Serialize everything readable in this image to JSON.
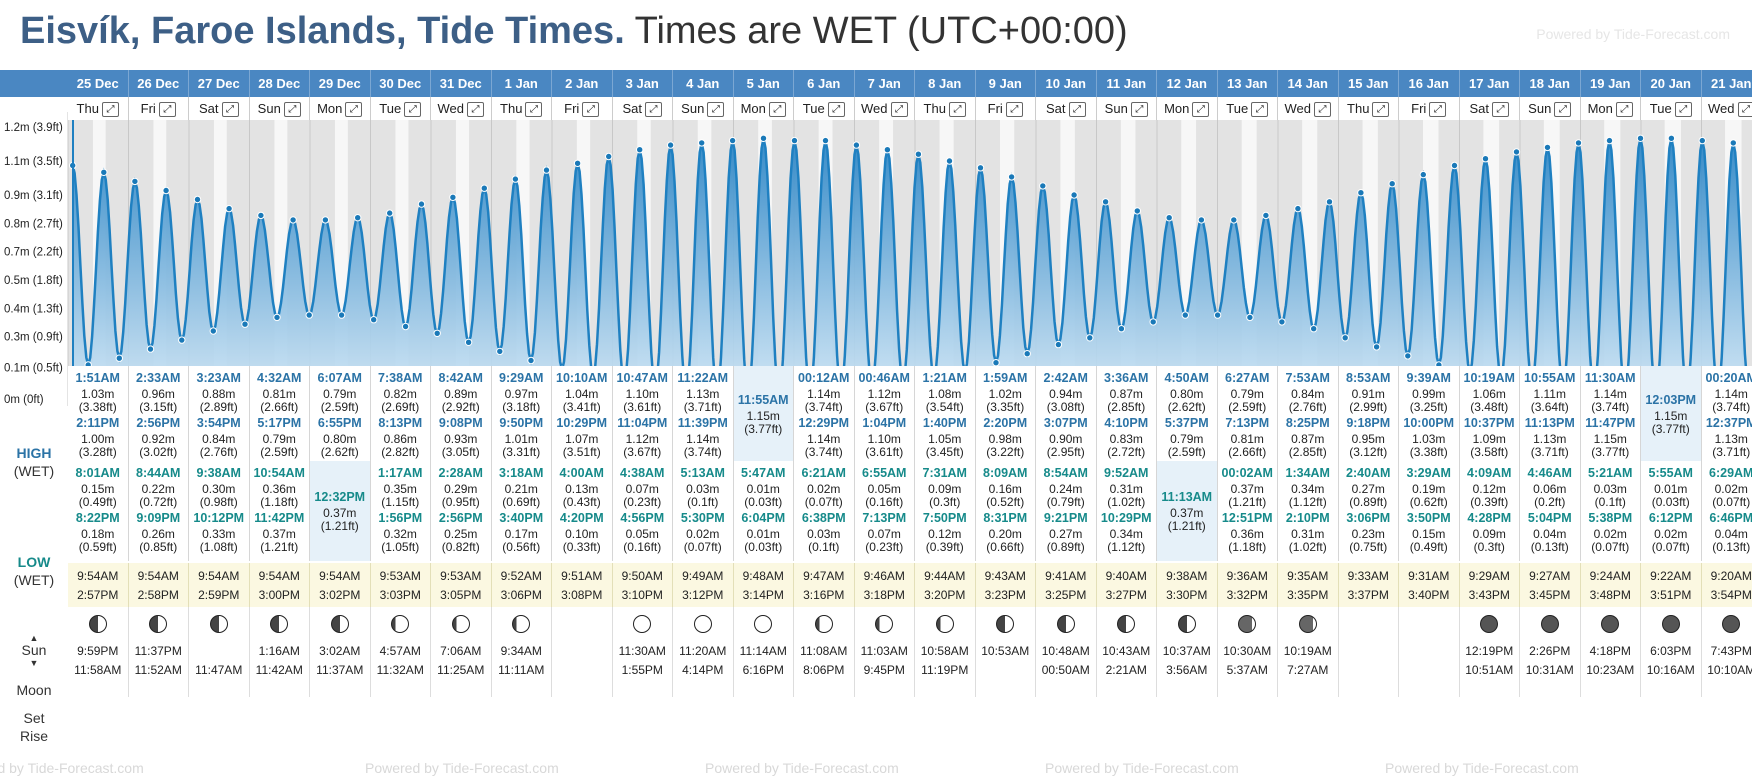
{
  "header": {
    "location": "Eisvík, Faroe Islands, Tide Times.",
    "timezone": "Times are WET (UTC+00:00)",
    "powered": "Powered by Tide-Forecast.com"
  },
  "footer": {
    "powered": "Powered by Tide-Forecast.com"
  },
  "labels": {
    "high": "HIGH",
    "low": "LOW",
    "wet": "(WET)",
    "sun": "Sun",
    "moon": "Moon",
    "set": "Set",
    "rise": "Rise"
  },
  "y_axis": [
    "1.2m (3.9ft)",
    "1.1m (3.5ft)",
    "0.9m (3.1ft)",
    "0.8m (2.7ft)",
    "0.7m (2.2ft)",
    "0.5m (1.8ft)",
    "0.4m (1.3ft)",
    "0.3m (0.9ft)",
    "0.1m (0.5ft)",
    "0m (0ft)"
  ],
  "icons": {
    "expand": "expand-icon",
    "sun_up": "arrow-up-icon",
    "sun_down": "arrow-down-icon",
    "moon": "moon-phase-icon"
  },
  "colors": {
    "header_bar": "#4a87c2",
    "tide": "#1f80c1",
    "title": "#3d5f86",
    "high_time": "#2b73a6",
    "low_time": "#168a8a",
    "sun_bg": "#fbf8e1"
  },
  "days": [
    {
      "date": "25 Dec",
      "dow": "Thu",
      "high": [
        [
          "1:51AM",
          "1.03m",
          "(3.38ft)"
        ],
        [
          "2:11PM",
          "1.00m",
          "(3.28ft)"
        ]
      ],
      "low": [
        [
          "8:01AM",
          "0.15m",
          "(0.49ft)"
        ],
        [
          "8:22PM",
          "0.18m",
          "(0.59ft)"
        ]
      ],
      "sunrise": "9:54AM",
      "sunset": "2:57PM",
      "moon_a": "9:59PM",
      "moon_b": "11:58AM",
      "moon_icon": "half"
    },
    {
      "date": "26 Dec",
      "dow": "Fri",
      "high": [
        [
          "2:33AM",
          "0.96m",
          "(3.15ft)"
        ],
        [
          "2:56PM",
          "0.92m",
          "(3.02ft)"
        ]
      ],
      "low": [
        [
          "8:44AM",
          "0.22m",
          "(0.72ft)"
        ],
        [
          "9:09PM",
          "0.26m",
          "(0.85ft)"
        ]
      ],
      "sunrise": "9:54AM",
      "sunset": "2:58PM",
      "moon_a": "11:37PM",
      "moon_b": "11:52AM",
      "moon_icon": "half"
    },
    {
      "date": "27 Dec",
      "dow": "Sat",
      "high": [
        [
          "3:23AM",
          "0.88m",
          "(2.89ft)"
        ],
        [
          "3:54PM",
          "0.84m",
          "(2.76ft)"
        ]
      ],
      "low": [
        [
          "9:38AM",
          "0.30m",
          "(0.98ft)"
        ],
        [
          "10:12PM",
          "0.33m",
          "(1.08ft)"
        ]
      ],
      "sunrise": "9:54AM",
      "sunset": "2:59PM",
      "moon_a": "",
      "moon_b": "11:47AM",
      "moon_icon": "half"
    },
    {
      "date": "28 Dec",
      "dow": "Sun",
      "high": [
        [
          "4:32AM",
          "0.81m",
          "(2.66ft)"
        ],
        [
          "5:17PM",
          "0.79m",
          "(2.59ft)"
        ]
      ],
      "low": [
        [
          "10:54AM",
          "0.36m",
          "(1.18ft)"
        ],
        [
          "11:42PM",
          "0.37m",
          "(1.21ft)"
        ]
      ],
      "sunrise": "9:54AM",
      "sunset": "3:00PM",
      "moon_a": "1:16AM",
      "moon_b": "11:42AM",
      "moon_icon": "half"
    },
    {
      "date": "29 Dec",
      "dow": "Mon",
      "high": [
        [
          "6:07AM",
          "0.79m",
          "(2.59ft)"
        ],
        [
          "6:55PM",
          "0.80m",
          "(2.62ft)"
        ]
      ],
      "low": [
        [
          "12:32PM",
          "0.37m",
          "(1.21ft)"
        ]
      ],
      "sunrise": "9:54AM",
      "sunset": "3:02PM",
      "moon_a": "3:02AM",
      "moon_b": "11:37AM",
      "moon_icon": "half"
    },
    {
      "date": "30 Dec",
      "dow": "Tue",
      "high": [
        [
          "7:38AM",
          "0.82m",
          "(2.69ft)"
        ],
        [
          "8:13PM",
          "0.86m",
          "(2.82ft)"
        ]
      ],
      "low": [
        [
          "1:17AM",
          "0.35m",
          "(1.15ft)"
        ],
        [
          "1:56PM",
          "0.32m",
          "(1.05ft)"
        ]
      ],
      "sunrise": "9:53AM",
      "sunset": "3:03PM",
      "moon_a": "4:57AM",
      "moon_b": "11:32AM",
      "moon_icon": "gibbous"
    },
    {
      "date": "31 Dec",
      "dow": "Wed",
      "high": [
        [
          "8:42AM",
          "0.89m",
          "(2.92ft)"
        ],
        [
          "9:08PM",
          "0.93m",
          "(3.05ft)"
        ]
      ],
      "low": [
        [
          "2:28AM",
          "0.29m",
          "(0.95ft)"
        ],
        [
          "2:56PM",
          "0.25m",
          "(0.82ft)"
        ]
      ],
      "sunrise": "9:53AM",
      "sunset": "3:05PM",
      "moon_a": "7:06AM",
      "moon_b": "11:25AM",
      "moon_icon": "gibbous"
    },
    {
      "date": "1 Jan",
      "dow": "Thu",
      "high": [
        [
          "9:29AM",
          "0.97m",
          "(3.18ft)"
        ],
        [
          "9:50PM",
          "1.01m",
          "(3.31ft)"
        ]
      ],
      "low": [
        [
          "3:18AM",
          "0.21m",
          "(0.69ft)"
        ],
        [
          "3:40PM",
          "0.17m",
          "(0.56ft)"
        ]
      ],
      "sunrise": "9:52AM",
      "sunset": "3:06PM",
      "moon_a": "9:34AM",
      "moon_b": "11:11AM",
      "moon_icon": "gibbous"
    },
    {
      "date": "2 Jan",
      "dow": "Fri",
      "high": [
        [
          "10:10AM",
          "1.04m",
          "(3.41ft)"
        ],
        [
          "10:29PM",
          "1.07m",
          "(3.51ft)"
        ]
      ],
      "low": [
        [
          "4:00AM",
          "0.13m",
          "(0.43ft)"
        ],
        [
          "4:20PM",
          "0.10m",
          "(0.33ft)"
        ]
      ],
      "sunrise": "9:51AM",
      "sunset": "3:08PM",
      "moon_a": "",
      "moon_b": "",
      "moon_icon": "none"
    },
    {
      "date": "3 Jan",
      "dow": "Sat",
      "high": [
        [
          "10:47AM",
          "1.10m",
          "(3.61ft)"
        ],
        [
          "11:04PM",
          "1.12m",
          "(3.67ft)"
        ]
      ],
      "low": [
        [
          "4:38AM",
          "0.07m",
          "(0.23ft)"
        ],
        [
          "4:56PM",
          "0.05m",
          "(0.16ft)"
        ]
      ],
      "sunrise": "9:50AM",
      "sunset": "3:10PM",
      "moon_a": "11:30AM",
      "moon_b": "1:55PM",
      "moon_icon": "full"
    },
    {
      "date": "4 Jan",
      "dow": "Sun",
      "high": [
        [
          "11:22AM",
          "1.13m",
          "(3.71ft)"
        ],
        [
          "11:39PM",
          "1.14m",
          "(3.74ft)"
        ]
      ],
      "low": [
        [
          "5:13AM",
          "0.03m",
          "(0.1ft)"
        ],
        [
          "5:30PM",
          "0.02m",
          "(0.07ft)"
        ]
      ],
      "sunrise": "9:49AM",
      "sunset": "3:12PM",
      "moon_a": "11:20AM",
      "moon_b": "4:14PM",
      "moon_icon": "full"
    },
    {
      "date": "5 Jan",
      "dow": "Mon",
      "high": [
        [
          "11:55AM",
          "1.15m",
          "(3.77ft)"
        ]
      ],
      "low": [
        [
          "5:47AM",
          "0.01m",
          "(0.03ft)"
        ],
        [
          "6:04PM",
          "0.01m",
          "(0.03ft)"
        ]
      ],
      "sunrise": "9:48AM",
      "sunset": "3:14PM",
      "moon_a": "11:14AM",
      "moon_b": "6:16PM",
      "moon_icon": "full"
    },
    {
      "date": "6 Jan",
      "dow": "Tue",
      "high": [
        [
          "00:12AM",
          "1.14m",
          "(3.74ft)"
        ],
        [
          "12:29PM",
          "1.14m",
          "(3.74ft)"
        ]
      ],
      "low": [
        [
          "6:21AM",
          "0.02m",
          "(0.07ft)"
        ],
        [
          "6:38PM",
          "0.03m",
          "(0.1ft)"
        ]
      ],
      "sunrise": "9:47AM",
      "sunset": "3:16PM",
      "moon_a": "11:08AM",
      "moon_b": "8:06PM",
      "moon_icon": "gibbous"
    },
    {
      "date": "7 Jan",
      "dow": "Wed",
      "high": [
        [
          "00:46AM",
          "1.12m",
          "(3.67ft)"
        ],
        [
          "1:04PM",
          "1.10m",
          "(3.61ft)"
        ]
      ],
      "low": [
        [
          "6:55AM",
          "0.05m",
          "(0.16ft)"
        ],
        [
          "7:13PM",
          "0.07m",
          "(0.23ft)"
        ]
      ],
      "sunrise": "9:46AM",
      "sunset": "3:18PM",
      "moon_a": "11:03AM",
      "moon_b": "9:45PM",
      "moon_icon": "gibbous"
    },
    {
      "date": "8 Jan",
      "dow": "Thu",
      "high": [
        [
          "1:21AM",
          "1.08m",
          "(3.54ft)"
        ],
        [
          "1:40PM",
          "1.05m",
          "(3.45ft)"
        ]
      ],
      "low": [
        [
          "7:31AM",
          "0.09m",
          "(0.3ft)"
        ],
        [
          "7:50PM",
          "0.12m",
          "(0.39ft)"
        ]
      ],
      "sunrise": "9:44AM",
      "sunset": "3:20PM",
      "moon_a": "10:58AM",
      "moon_b": "11:19PM",
      "moon_icon": "gibbous"
    },
    {
      "date": "9 Jan",
      "dow": "Fri",
      "high": [
        [
          "1:59AM",
          "1.02m",
          "(3.35ft)"
        ],
        [
          "2:20PM",
          "0.98m",
          "(3.22ft)"
        ]
      ],
      "low": [
        [
          "8:09AM",
          "0.16m",
          "(0.52ft)"
        ],
        [
          "8:31PM",
          "0.20m",
          "(0.66ft)"
        ]
      ],
      "sunrise": "9:43AM",
      "sunset": "3:23PM",
      "moon_a": "10:53AM",
      "moon_b": "",
      "moon_icon": "half"
    },
    {
      "date": "10 Jan",
      "dow": "Sat",
      "high": [
        [
          "2:42AM",
          "0.94m",
          "(3.08ft)"
        ],
        [
          "3:07PM",
          "0.90m",
          "(2.95ft)"
        ]
      ],
      "low": [
        [
          "8:54AM",
          "0.24m",
          "(0.79ft)"
        ],
        [
          "9:21PM",
          "0.27m",
          "(0.89ft)"
        ]
      ],
      "sunrise": "9:41AM",
      "sunset": "3:25PM",
      "moon_a": "10:48AM",
      "moon_b": "00:50AM",
      "moon_icon": "half"
    },
    {
      "date": "11 Jan",
      "dow": "Sun",
      "high": [
        [
          "3:36AM",
          "0.87m",
          "(2.85ft)"
        ],
        [
          "4:10PM",
          "0.83m",
          "(2.72ft)"
        ]
      ],
      "low": [
        [
          "9:52AM",
          "0.31m",
          "(1.02ft)"
        ],
        [
          "10:29PM",
          "0.34m",
          "(1.12ft)"
        ]
      ],
      "sunrise": "9:40AM",
      "sunset": "3:27PM",
      "moon_a": "10:43AM",
      "moon_b": "2:21AM",
      "moon_icon": "half"
    },
    {
      "date": "12 Jan",
      "dow": "Mon",
      "high": [
        [
          "4:50AM",
          "0.80m",
          "(2.62ft)"
        ],
        [
          "5:37PM",
          "0.79m",
          "(2.59ft)"
        ]
      ],
      "low": [
        [
          "11:13AM",
          "0.37m",
          "(1.21ft)"
        ]
      ],
      "sunrise": "9:38AM",
      "sunset": "3:30PM",
      "moon_a": "10:37AM",
      "moon_b": "3:56AM",
      "moon_icon": "half"
    },
    {
      "date": "13 Jan",
      "dow": "Tue",
      "high": [
        [
          "6:27AM",
          "0.79m",
          "(2.59ft)"
        ],
        [
          "7:13PM",
          "0.81m",
          "(2.66ft)"
        ]
      ],
      "low": [
        [
          "00:02AM",
          "0.37m",
          "(1.21ft)"
        ],
        [
          "12:51PM",
          "0.36m",
          "(1.18ft)"
        ]
      ],
      "sunrise": "9:36AM",
      "sunset": "3:32PM",
      "moon_a": "10:30AM",
      "moon_b": "5:37AM",
      "moon_icon": "crescent"
    },
    {
      "date": "14 Jan",
      "dow": "Wed",
      "high": [
        [
          "7:53AM",
          "0.84m",
          "(2.76ft)"
        ],
        [
          "8:25PM",
          "0.87m",
          "(2.85ft)"
        ]
      ],
      "low": [
        [
          "1:34AM",
          "0.34m",
          "(1.12ft)"
        ],
        [
          "2:10PM",
          "0.31m",
          "(1.02ft)"
        ]
      ],
      "sunrise": "9:35AM",
      "sunset": "3:35PM",
      "moon_a": "10:19AM",
      "moon_b": "7:27AM",
      "moon_icon": "crescent"
    },
    {
      "date": "15 Jan",
      "dow": "Thu",
      "high": [
        [
          "8:53AM",
          "0.91m",
          "(2.99ft)"
        ],
        [
          "9:18PM",
          "0.95m",
          "(3.12ft)"
        ]
      ],
      "low": [
        [
          "2:40AM",
          "0.27m",
          "(0.89ft)"
        ],
        [
          "3:06PM",
          "0.23m",
          "(0.75ft)"
        ]
      ],
      "sunrise": "9:33AM",
      "sunset": "3:37PM",
      "moon_a": "",
      "moon_b": "",
      "moon_icon": "none"
    },
    {
      "date": "16 Jan",
      "dow": "Fri",
      "high": [
        [
          "9:39AM",
          "0.99m",
          "(3.25ft)"
        ],
        [
          "10:00PM",
          "1.03m",
          "(3.38ft)"
        ]
      ],
      "low": [
        [
          "3:29AM",
          "0.19m",
          "(0.62ft)"
        ],
        [
          "3:50PM",
          "0.15m",
          "(0.49ft)"
        ]
      ],
      "sunrise": "9:31AM",
      "sunset": "3:40PM",
      "moon_a": "",
      "moon_b": "",
      "moon_icon": "none"
    },
    {
      "date": "17 Jan",
      "dow": "Sat",
      "high": [
        [
          "10:19AM",
          "1.06m",
          "(3.48ft)"
        ],
        [
          "10:37PM",
          "1.09m",
          "(3.58ft)"
        ]
      ],
      "low": [
        [
          "4:09AM",
          "0.12m",
          "(0.39ft)"
        ],
        [
          "4:28PM",
          "0.09m",
          "(0.3ft)"
        ]
      ],
      "sunrise": "9:29AM",
      "sunset": "3:43PM",
      "moon_a": "12:19PM",
      "moon_b": "10:51AM",
      "moon_icon": "new"
    },
    {
      "date": "18 Jan",
      "dow": "Sun",
      "high": [
        [
          "10:55AM",
          "1.11m",
          "(3.64ft)"
        ],
        [
          "11:13PM",
          "1.13m",
          "(3.71ft)"
        ]
      ],
      "low": [
        [
          "4:46AM",
          "0.06m",
          "(0.2ft)"
        ],
        [
          "5:04PM",
          "0.04m",
          "(0.13ft)"
        ]
      ],
      "sunrise": "9:27AM",
      "sunset": "3:45PM",
      "moon_a": "2:26PM",
      "moon_b": "10:31AM",
      "moon_icon": "new"
    },
    {
      "date": "19 Jan",
      "dow": "Mon",
      "high": [
        [
          "11:30AM",
          "1.14m",
          "(3.74ft)"
        ],
        [
          "11:47PM",
          "1.15m",
          "(3.77ft)"
        ]
      ],
      "low": [
        [
          "5:21AM",
          "0.03m",
          "(0.1ft)"
        ],
        [
          "5:38PM",
          "0.02m",
          "(0.07ft)"
        ]
      ],
      "sunrise": "9:24AM",
      "sunset": "3:48PM",
      "moon_a": "4:18PM",
      "moon_b": "10:23AM",
      "moon_icon": "new"
    },
    {
      "date": "20 Jan",
      "dow": "Tue",
      "high": [
        [
          "12:03PM",
          "1.15m",
          "(3.77ft)"
        ]
      ],
      "low": [
        [
          "5:55AM",
          "0.01m",
          "(0.03ft)"
        ],
        [
          "6:12PM",
          "0.02m",
          "(0.07ft)"
        ]
      ],
      "sunrise": "9:22AM",
      "sunset": "3:51PM",
      "moon_a": "6:03PM",
      "moon_b": "10:16AM",
      "moon_icon": "new"
    },
    {
      "date": "21 Jan",
      "dow": "Wed",
      "high": [
        [
          "00:20AM",
          "1.14m",
          "(3.74ft)"
        ],
        [
          "12:37PM",
          "1.13m",
          "(3.71ft)"
        ]
      ],
      "low": [
        [
          "6:29AM",
          "0.02m",
          "(0.07ft)"
        ],
        [
          "6:46PM",
          "0.04m",
          "(0.13ft)"
        ]
      ],
      "sunrise": "9:20AM",
      "sunset": "3:54PM",
      "moon_a": "7:43PM",
      "moon_b": "10:10AM",
      "moon_icon": "new"
    }
  ]
}
